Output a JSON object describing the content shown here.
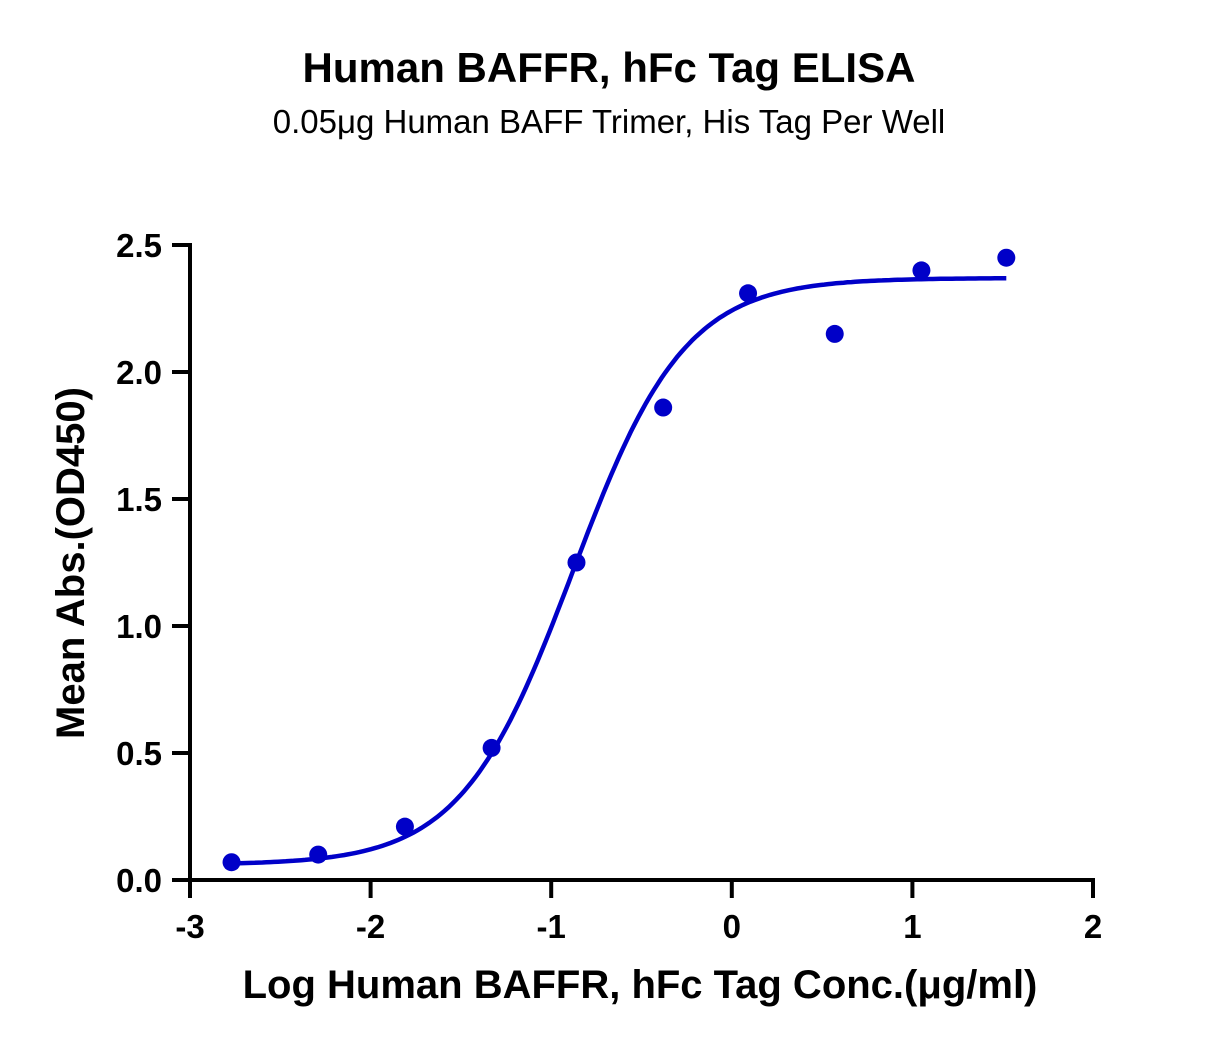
{
  "chart_data": {
    "type": "scatter",
    "title": "Human BAFFR, hFc Tag ELISA",
    "subtitle": "0.05μg Human BAFF Trimer, His Tag Per Well",
    "xlabel": "Log Human BAFFR, hFc Tag Conc.(μg/ml)",
    "ylabel": "Mean Abs.(OD450)",
    "xlim": [
      -3,
      2
    ],
    "ylim": [
      0,
      2.5
    ],
    "x_ticks": [
      "-3",
      "-2",
      "-1",
      "0",
      "1",
      "2"
    ],
    "y_ticks": [
      "0.0",
      "0.5",
      "1.0",
      "1.5",
      "2.0",
      "2.5"
    ],
    "grid": false,
    "series": [
      {
        "color": "#0000c8",
        "points": [
          {
            "x": -2.77,
            "y": 0.07
          },
          {
            "x": -2.29,
            "y": 0.1
          },
          {
            "x": -1.81,
            "y": 0.21
          },
          {
            "x": -1.33,
            "y": 0.52
          },
          {
            "x": -0.86,
            "y": 1.25
          },
          {
            "x": -0.38,
            "y": 1.86
          },
          {
            "x": 0.09,
            "y": 2.31
          },
          {
            "x": 0.57,
            "y": 2.15
          },
          {
            "x": 1.05,
            "y": 2.4
          },
          {
            "x": 1.52,
            "y": 2.45
          }
        ],
        "fit": {
          "model": "4PL",
          "bottom": 0.06,
          "top": 2.37,
          "log_ec50": -0.88,
          "hill_slope": 1.4,
          "x_range": [
            -2.77,
            1.52
          ]
        }
      }
    ]
  }
}
